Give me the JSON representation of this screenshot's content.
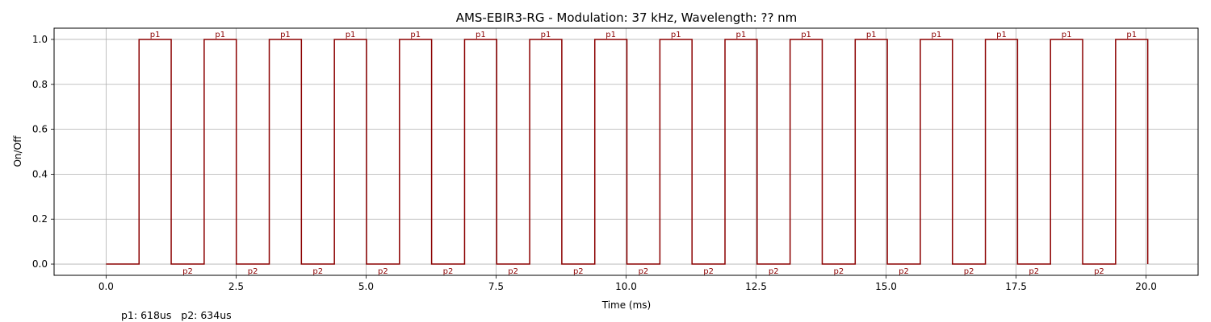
{
  "chart_data": {
    "type": "line",
    "title": "AMS-EBIR3-RG - Modulation: 37 kHz, Wavelength: ?? nm",
    "xlabel": "Time (ms)",
    "ylabel": "On/Off",
    "xlim": [
      -1.0,
      21.0
    ],
    "ylim": [
      -0.05,
      1.05
    ],
    "x_ticks": [
      0.0,
      2.5,
      5.0,
      7.5,
      10.0,
      12.5,
      15.0,
      17.5,
      20.0
    ],
    "x_tick_labels": [
      "0.0",
      "2.5",
      "5.0",
      "7.5",
      "10.0",
      "12.5",
      "15.0",
      "17.5",
      "20.0"
    ],
    "y_ticks": [
      0.0,
      0.2,
      0.4,
      0.6,
      0.8,
      1.0
    ],
    "y_tick_labels": [
      "0.0",
      "0.2",
      "0.4",
      "0.6",
      "0.8",
      "1.0"
    ],
    "grid": true,
    "line_color": "#8b0000",
    "series": [
      {
        "x": [
          0.0,
          0.634,
          0.634,
          1.252,
          1.252,
          1.886,
          1.886,
          2.504,
          2.504,
          3.138,
          3.138,
          3.756,
          3.756,
          4.39,
          4.39,
          5.008,
          5.008,
          5.642,
          5.642,
          6.26,
          6.26,
          6.894,
          6.894,
          7.512,
          7.512,
          8.146,
          8.146,
          8.764,
          8.764,
          9.398,
          9.398,
          10.016,
          10.016,
          10.65,
          10.65,
          11.268,
          11.268,
          11.902,
          11.902,
          12.52,
          12.52,
          13.154,
          13.154,
          13.772,
          13.772,
          14.406,
          14.406,
          15.024,
          15.024,
          15.658,
          15.658,
          16.276,
          16.276,
          16.91,
          16.91,
          17.528,
          17.528,
          18.162,
          18.162,
          18.78,
          18.78,
          19.414,
          19.414,
          20.032,
          20.032
        ],
        "y": [
          0,
          0,
          1,
          1,
          0,
          0,
          1,
          1,
          0,
          0,
          1,
          1,
          0,
          0,
          1,
          1,
          0,
          0,
          1,
          1,
          0,
          0,
          1,
          1,
          0,
          0,
          1,
          1,
          0,
          0,
          1,
          1,
          0,
          0,
          1,
          1,
          0,
          0,
          1,
          1,
          0,
          0,
          1,
          1,
          0,
          0,
          1,
          1,
          0,
          0,
          1,
          1,
          0,
          0,
          1,
          1,
          0,
          0,
          1,
          1,
          0,
          0,
          1,
          1,
          0
        ]
      }
    ],
    "annotations": {
      "p1_label": "p1",
      "p2_label": "p2",
      "p1_positions": [
        0.943,
        2.195,
        3.447,
        4.699,
        5.951,
        7.203,
        8.455,
        9.707,
        10.959,
        12.211,
        13.463,
        14.715,
        15.967,
        17.219,
        18.471,
        19.723
      ],
      "p2_positions": [
        1.569,
        2.821,
        4.073,
        5.325,
        6.577,
        7.829,
        9.081,
        10.333,
        11.585,
        12.837,
        14.089,
        15.341,
        16.593,
        17.845,
        19.097
      ]
    },
    "footnote": "p1: 618us   p2: 634us"
  }
}
